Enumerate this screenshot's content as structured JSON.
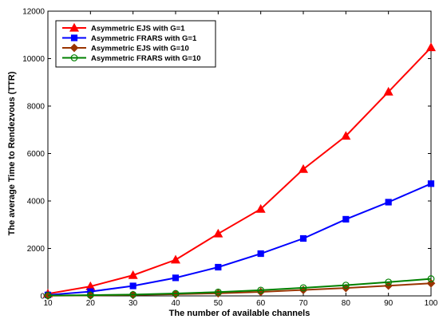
{
  "chart_data": {
    "type": "line",
    "xlabel": "The number of available channels",
    "ylabel": "The average Time to Rendezvous (TTR)",
    "xlim": [
      10,
      100
    ],
    "ylim": [
      0,
      12000
    ],
    "xticks": [
      10,
      20,
      30,
      40,
      50,
      60,
      70,
      80,
      90,
      100
    ],
    "yticks": [
      0,
      2000,
      4000,
      6000,
      8000,
      10000,
      12000
    ],
    "grid": false,
    "legend_position": "top-left",
    "x": [
      10,
      20,
      30,
      40,
      50,
      60,
      70,
      80,
      90,
      100
    ],
    "series": [
      {
        "name": "Asymmetric EJS with G=1",
        "color": "#ff0000",
        "marker": "triangle",
        "values": [
          90,
          400,
          870,
          1520,
          2620,
          3660,
          5340,
          6740,
          8600,
          10470
        ]
      },
      {
        "name": "Asymmetric FRARS with G=1",
        "color": "#0000ff",
        "marker": "square",
        "values": [
          40,
          180,
          420,
          760,
          1210,
          1780,
          2420,
          3230,
          3950,
          4730
        ]
      },
      {
        "name": "Asymmetric EJS with G=10",
        "color": "#993300",
        "marker": "diamond",
        "values": [
          10,
          20,
          40,
          70,
          110,
          170,
          250,
          330,
          430,
          530
        ]
      },
      {
        "name": "Asymmetric FRARS with G=10",
        "color": "#008000",
        "marker": "circle",
        "values": [
          15,
          30,
          55,
          100,
          160,
          240,
          340,
          450,
          580,
          720
        ]
      }
    ]
  }
}
